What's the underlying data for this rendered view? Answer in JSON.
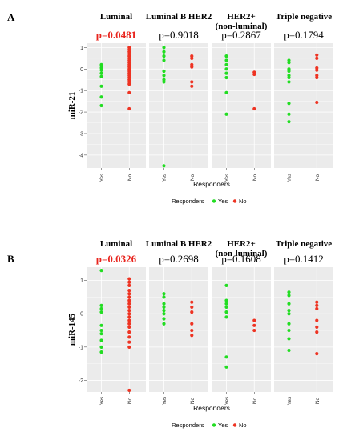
{
  "colors": {
    "yes": "#22dd22",
    "no": "#ee3322",
    "panel_bg": "#ebebeb",
    "grid": "#ffffff",
    "sig_text": "#e8231c"
  },
  "legend": {
    "title": "Responders",
    "yes_label": "Yes",
    "no_label": "No"
  },
  "chart_data": [
    {
      "type": "scatter",
      "panel_letter": "A",
      "ylabel": "miR-21",
      "xlabel": "Responders",
      "x_categories": [
        "Yes",
        "No"
      ],
      "ylim": [
        -4.6,
        1.2
      ],
      "yticks": [
        1,
        0,
        -1,
        -2,
        -3,
        -4
      ],
      "facets": [
        {
          "title": "Luminal",
          "pvalue": "p=0.0481",
          "significant": true,
          "yes": [
            0.2,
            0.15,
            0.05,
            -0.05,
            -0.2,
            -0.35,
            -0.8,
            -1.3,
            -1.7
          ],
          "no": [
            1.0,
            0.9,
            0.8,
            0.7,
            0.6,
            0.5,
            0.4,
            0.3,
            0.2,
            0.1,
            0.0,
            -0.1,
            -0.2,
            -0.3,
            -0.4,
            -0.5,
            -0.6,
            -0.7,
            -1.1,
            -1.85
          ]
        },
        {
          "title": "Luminal B HER2",
          "pvalue": "p=0.9018",
          "significant": false,
          "yes": [
            1.0,
            0.8,
            0.6,
            0.4,
            -0.1,
            -0.3,
            -0.5,
            -0.6,
            -4.5
          ],
          "no": [
            0.6,
            0.5,
            0.2,
            0.1,
            -0.6,
            -0.8
          ]
        },
        {
          "title": "HER2+\n(non-luminal)",
          "pvalue": "p=0.2867",
          "significant": false,
          "yes": [
            0.6,
            0.4,
            0.2,
            0.0,
            -0.2,
            -0.4,
            -1.1,
            -2.1
          ],
          "no": [
            -0.15,
            -0.25,
            -1.85
          ]
        },
        {
          "title": "Triple negative",
          "pvalue": "p=0.1794",
          "significant": false,
          "yes": [
            0.4,
            0.3,
            0.0,
            -0.1,
            -0.3,
            -0.4,
            -0.6,
            -1.6,
            -2.1,
            -2.45
          ],
          "no": [
            0.65,
            0.5,
            0.05,
            -0.05,
            -0.3,
            -0.4,
            -1.55
          ]
        }
      ]
    },
    {
      "type": "scatter",
      "panel_letter": "B",
      "ylabel": "miR-145",
      "xlabel": "Responders",
      "x_categories": [
        "Yes",
        "No"
      ],
      "ylim": [
        -2.35,
        1.4
      ],
      "yticks": [
        1,
        0,
        -1,
        -2
      ],
      "facets": [
        {
          "title": "Luminal",
          "pvalue": "p=0.0326",
          "significant": true,
          "yes": [
            1.3,
            0.25,
            0.15,
            0.05,
            -0.35,
            -0.5,
            -0.6,
            -0.8,
            -1.0,
            -1.15
          ],
          "no": [
            1.05,
            0.95,
            0.85,
            0.7,
            0.6,
            0.5,
            0.4,
            0.3,
            0.2,
            0.1,
            0.0,
            -0.1,
            -0.2,
            -0.3,
            -0.4,
            -0.55,
            -0.7,
            -0.85,
            -1.0,
            -2.3
          ]
        },
        {
          "title": "Luminal B HER2",
          "pvalue": "p=0.2698",
          "significant": false,
          "yes": [
            0.6,
            0.5,
            0.3,
            0.2,
            0.1,
            0.0,
            -0.15,
            -0.3
          ],
          "no": [
            0.35,
            0.2,
            0.05,
            -0.3,
            -0.5,
            -0.65
          ]
        },
        {
          "title": "HER2+\n(non-luminal)",
          "pvalue": "p=0.1608",
          "significant": false,
          "yes": [
            0.85,
            0.4,
            0.3,
            0.2,
            0.05,
            -0.1,
            -1.3,
            -1.6
          ],
          "no": [
            -0.2,
            -0.35,
            -0.5
          ]
        },
        {
          "title": "Triple negative",
          "pvalue": "p=0.1412",
          "significant": false,
          "yes": [
            0.65,
            0.55,
            0.3,
            0.1,
            0.0,
            -0.3,
            -0.5,
            -0.75,
            -1.1
          ],
          "no": [
            0.35,
            0.25,
            0.15,
            -0.2,
            -0.4,
            -0.55,
            -1.2
          ]
        }
      ]
    }
  ]
}
